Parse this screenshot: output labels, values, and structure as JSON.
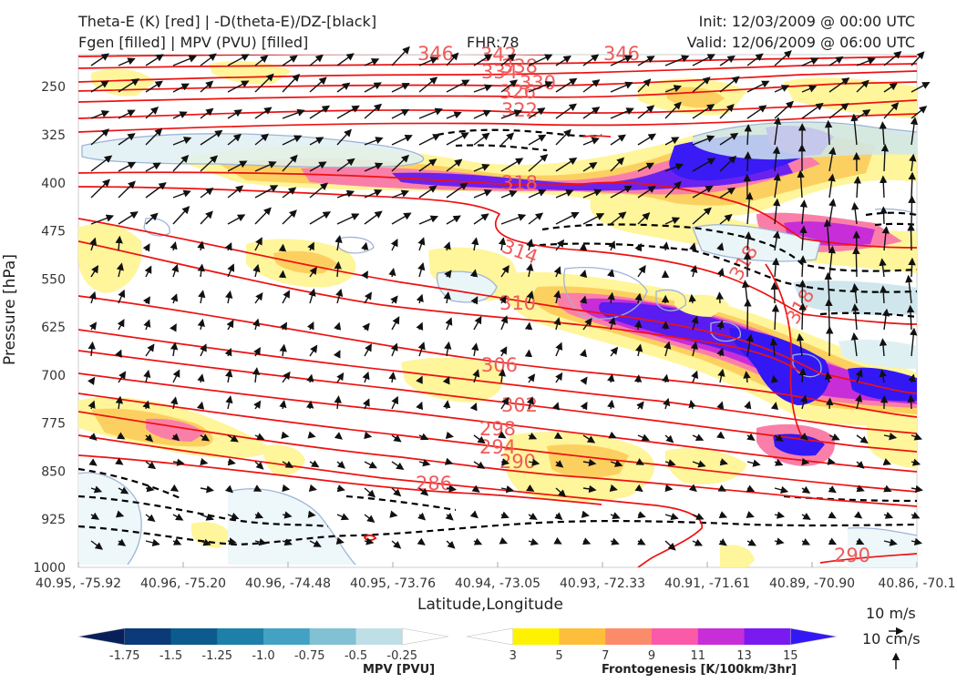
{
  "header": {
    "title_left_1": "Theta-E (K) [red] | -D(theta-E)/DZ-[black]",
    "title_left_2": "Fgen [filled] | MPV (PVU) [filled]",
    "fhr": "FHR:78",
    "init": "Init: 12/03/2009 @ 00:00 UTC",
    "valid": "Valid: 12/06/2009 @ 06:00 UTC"
  },
  "axes": {
    "ylabel": "Pressure [hPa]",
    "xlabel": "Latitude,Longitude",
    "yticks": [
      "250",
      "325",
      "400",
      "475",
      "550",
      "625",
      "700",
      "775",
      "850",
      "925",
      "1000"
    ],
    "xticks": [
      "40.95, -75.92",
      "40.96, -75.20",
      "40.96, -74.48",
      "40.95, -73.76",
      "40.94, -73.05",
      "40.93, -72.33",
      "40.91, -71.61",
      "40.89, -70.90",
      "40.86, -70.1"
    ]
  },
  "colorbars": {
    "mpv": {
      "label": "MPV [PVU]",
      "ticks": [
        "-1.75",
        "-1.5",
        "-1.25",
        "-1.0",
        "-0.75",
        "-0.5",
        "-0.25"
      ],
      "colors": [
        "#08205a",
        "#0b3a78",
        "#0d5b8e",
        "#1e7fa8",
        "#43a2c4",
        "#82c0d4",
        "#bfdfe6",
        "#ffffff"
      ]
    },
    "fgen": {
      "label": "Frontogenesis [K/100km/3hr]",
      "ticks": [
        "3",
        "5",
        "7",
        "9",
        "11",
        "13",
        "15"
      ],
      "colors": [
        "#ffffff",
        "#fff200",
        "#fdbe3a",
        "#fc8b6a",
        "#fa5aa8",
        "#c72ed8",
        "#7a1af0",
        "#3318f5"
      ]
    }
  },
  "wind_reference": {
    "horizontal": "10 m/s",
    "vertical": "10 cm/s"
  },
  "theta_labels": [
    "346",
    "342",
    "338",
    "334",
    "330",
    "326",
    "322",
    "318",
    "314",
    "310",
    "306",
    "302",
    "298",
    "294",
    "290",
    "286",
    "318",
    "318",
    "290",
    "346"
  ],
  "colors": {
    "theta_e": "#ee1111",
    "theta_label": "#f05a5a",
    "stability": "#000000",
    "mpv_contour": "#9fb4d8",
    "arrows": "#111111"
  },
  "chart_data": {
    "type": "contour",
    "title": "Theta-E (K) [red] | -D(theta-E)/DZ-[black]",
    "xlabel": "Latitude,Longitude",
    "ylabel": "Pressure [hPa]",
    "ylim": [
      1000,
      200
    ],
    "y_ticks": [
      250,
      325,
      400,
      475,
      550,
      625,
      700,
      775,
      850,
      925,
      1000
    ],
    "theta_e_contours_K": [
      286,
      290,
      294,
      298,
      302,
      306,
      310,
      314,
      318,
      322,
      326,
      330,
      334,
      338,
      342,
      346
    ],
    "fgen_levels": [
      3,
      5,
      7,
      9,
      11,
      13,
      15
    ],
    "mpv_levels": [
      -1.75,
      -1.5,
      -1.25,
      -1.0,
      -0.75,
      -0.5,
      -0.25
    ]
  }
}
